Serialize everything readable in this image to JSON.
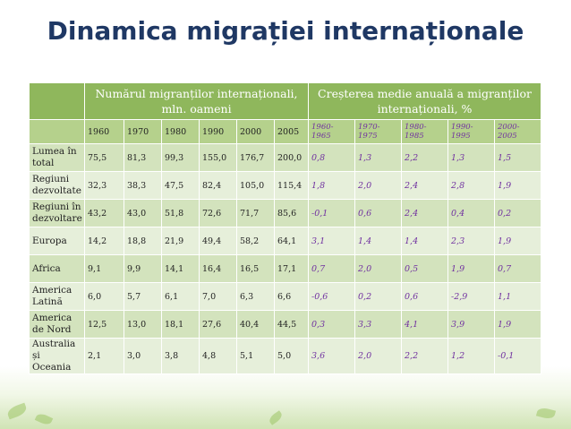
{
  "title": "Dinamica migrației internaționale",
  "header": {
    "group1": "Numărul migranților internaționali, mln. oameni",
    "group2": "Creșterea medie anuală a migranților internaționali, %",
    "years": [
      "1960",
      "1970",
      "1980",
      "1990",
      "2000",
      "2005"
    ],
    "periods": [
      "1960-\n1965",
      "1970-\n1975",
      "1980-\n1985",
      "1990-\n1995",
      "2000-\n2005"
    ]
  },
  "rows": [
    {
      "region": "Lumea în total",
      "counts": [
        "75,5",
        "81,3",
        "99,3",
        "155,0",
        "176,7",
        "200,0"
      ],
      "rates": [
        "0,8",
        "1,3",
        "2,2",
        "1,3",
        "1,5"
      ]
    },
    {
      "region": "Regiuni dezvoltate",
      "counts": [
        "32,3",
        "38,3",
        "47,5",
        "82,4",
        "105,0",
        "115,4"
      ],
      "rates": [
        "1,8",
        "2,0",
        "2,4",
        "2,8",
        "1,9"
      ]
    },
    {
      "region": "Regiuni în dezvoltare",
      "counts": [
        "43,2",
        "43,0",
        "51,8",
        "72,6",
        "71,7",
        "85,6"
      ],
      "rates": [
        "-0,1",
        "0,6",
        "2,4",
        "0,4",
        "0,2"
      ]
    },
    {
      "region": "Europa",
      "counts": [
        "14,2",
        "18,8",
        "21,9",
        "49,4",
        "58,2",
        "64,1"
      ],
      "rates": [
        "3,1",
        "1,4",
        "1,4",
        "2,3",
        "1,9"
      ]
    },
    {
      "region": "Africa",
      "counts": [
        "9,1",
        "9,9",
        "14,1",
        "16,4",
        "16,5",
        "17,1"
      ],
      "rates": [
        "0,7",
        "2,0",
        "0,5",
        "1,9",
        "0,7"
      ]
    },
    {
      "region": "America Latină",
      "counts": [
        "6,0",
        "5,7",
        "6,1",
        "7,0",
        "6,3",
        "6,6"
      ],
      "rates": [
        "-0,6",
        "0,2",
        "0,6",
        "-2,9",
        "1,1"
      ]
    },
    {
      "region": "America de Nord",
      "counts": [
        "12,5",
        "13,0",
        "18,1",
        "27,6",
        "40,4",
        "44,5"
      ],
      "rates": [
        "0,3",
        "3,3",
        "4,1",
        "3,9",
        "1,9"
      ]
    },
    {
      "region": "Australia și Oceania",
      "counts": [
        "2,1",
        "3,0",
        "3,8",
        "4,8",
        "5,1",
        "5,0"
      ],
      "rates": [
        "3,6",
        "2,0",
        "2,2",
        "1,2",
        "-0,1"
      ]
    }
  ]
}
